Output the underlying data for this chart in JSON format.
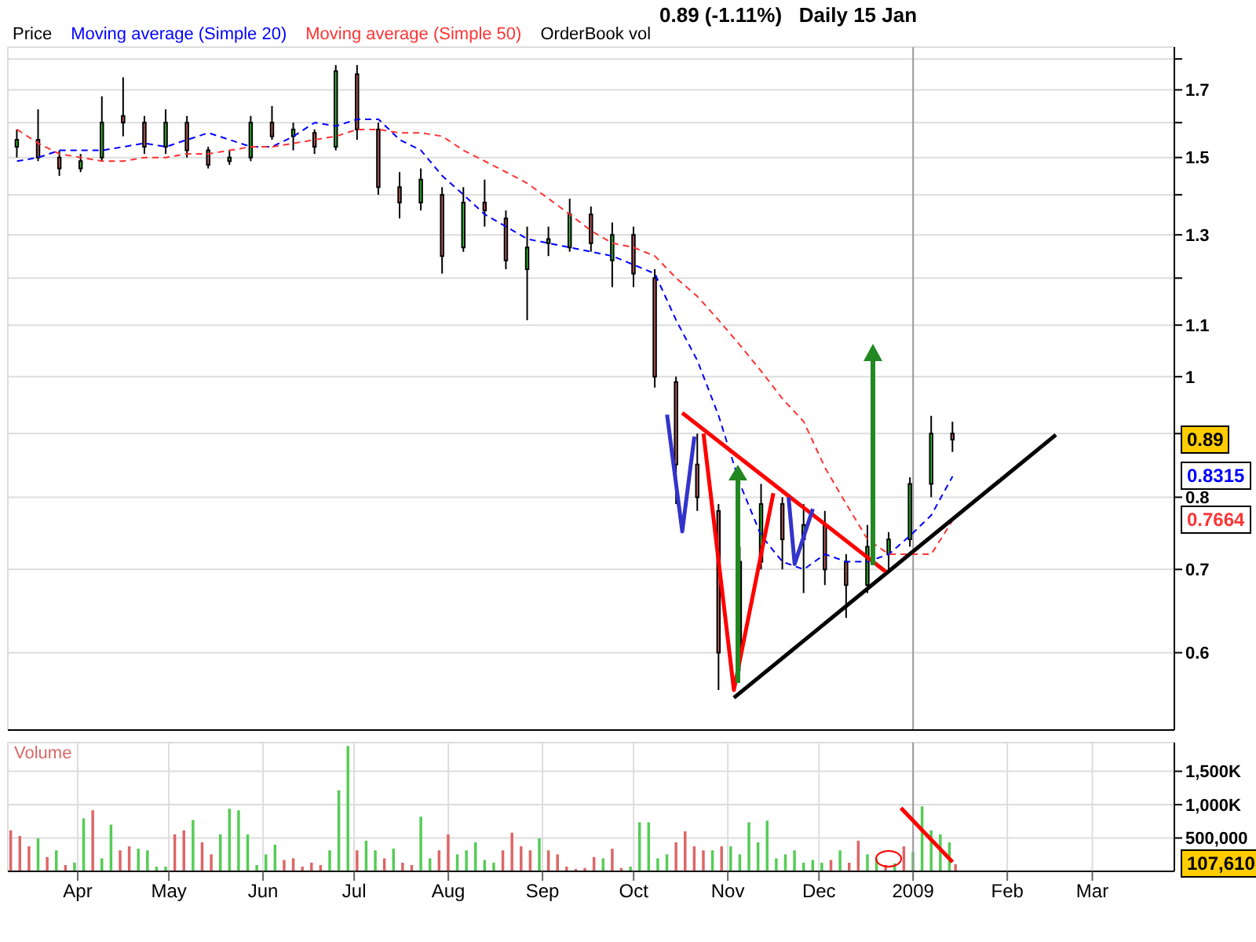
{
  "chart_data": [
    {
      "type": "candlestick",
      "title": "0.89 (-1.11%)   Daily 15 Jan",
      "legend": "top left",
      "grid": true,
      "log": "y",
      "tick_labels": "y",
      "x": [
        "2008-03-12",
        "2008-03-19",
        "2008-03-26",
        "2008-04-02",
        "2008-04-09",
        "2008-04-16",
        "2008-04-23",
        "2008-04-30",
        "2008-05-07",
        "2008-05-14",
        "2008-05-21",
        "2008-05-28",
        "2008-06-04",
        "2008-06-11",
        "2008-06-18",
        "2008-06-25",
        "2008-07-02",
        "2008-07-09",
        "2008-07-16",
        "2008-07-23",
        "2008-07-30",
        "2008-08-06",
        "2008-08-13",
        "2008-08-20",
        "2008-08-27",
        "2008-09-03",
        "2008-09-10",
        "2008-09-17",
        "2008-09-24",
        "2008-10-01",
        "2008-10-08",
        "2008-10-15",
        "2008-10-22",
        "2008-10-29",
        "2008-11-05",
        "2008-11-12",
        "2008-11-19",
        "2008-11-26",
        "2008-12-03",
        "2008-12-10",
        "2008-12-17",
        "2008-12-24",
        "2008-12-31",
        "2009-01-07",
        "2009-01-14"
      ],
      "series": [
        {
          "name": "Price",
          "ohlc": [
            [
              1.53,
              1.58,
              1.5,
              1.55
            ],
            [
              1.55,
              1.64,
              1.49,
              1.5
            ],
            [
              1.5,
              1.52,
              1.45,
              1.47
            ],
            [
              1.47,
              1.51,
              1.46,
              1.49
            ],
            [
              1.5,
              1.68,
              1.49,
              1.6
            ],
            [
              1.62,
              1.74,
              1.56,
              1.6
            ],
            [
              1.6,
              1.62,
              1.51,
              1.53
            ],
            [
              1.53,
              1.64,
              1.51,
              1.6
            ],
            [
              1.6,
              1.62,
              1.5,
              1.52
            ],
            [
              1.52,
              1.53,
              1.47,
              1.48
            ],
            [
              1.49,
              1.52,
              1.48,
              1.5
            ],
            [
              1.5,
              1.62,
              1.49,
              1.6
            ],
            [
              1.6,
              1.65,
              1.55,
              1.56
            ],
            [
              1.56,
              1.6,
              1.52,
              1.58
            ],
            [
              1.57,
              1.58,
              1.51,
              1.53
            ],
            [
              1.53,
              1.78,
              1.52,
              1.76
            ],
            [
              1.75,
              1.78,
              1.55,
              1.58
            ],
            [
              1.58,
              1.6,
              1.4,
              1.42
            ],
            [
              1.42,
              1.46,
              1.34,
              1.38
            ],
            [
              1.38,
              1.47,
              1.36,
              1.44
            ],
            [
              1.4,
              1.42,
              1.21,
              1.25
            ],
            [
              1.27,
              1.42,
              1.26,
              1.38
            ],
            [
              1.38,
              1.44,
              1.32,
              1.36
            ],
            [
              1.34,
              1.36,
              1.22,
              1.24
            ],
            [
              1.22,
              1.32,
              1.11,
              1.27
            ],
            [
              1.28,
              1.32,
              1.25,
              1.29
            ],
            [
              1.27,
              1.39,
              1.26,
              1.35
            ],
            [
              1.35,
              1.37,
              1.26,
              1.28
            ],
            [
              1.24,
              1.33,
              1.18,
              1.3
            ],
            [
              1.3,
              1.32,
              1.18,
              1.21
            ],
            [
              1.2,
              1.22,
              0.98,
              1.0
            ],
            [
              0.99,
              1.0,
              0.79,
              0.85
            ],
            [
              0.85,
              0.9,
              0.78,
              0.8
            ],
            [
              0.78,
              0.79,
              0.56,
              0.6
            ],
            [
              0.6,
              0.73,
              0.58,
              0.71
            ],
            [
              0.71,
              0.82,
              0.7,
              0.79
            ],
            [
              0.79,
              0.8,
              0.7,
              0.74
            ],
            [
              0.74,
              0.79,
              0.67,
              0.76
            ],
            [
              0.76,
              0.78,
              0.68,
              0.7
            ],
            [
              0.71,
              0.72,
              0.64,
              0.68
            ],
            [
              0.68,
              0.76,
              0.67,
              0.73
            ],
            [
              0.72,
              0.75,
              0.7,
              0.74
            ],
            [
              0.74,
              0.83,
              0.73,
              0.82
            ],
            [
              0.82,
              0.93,
              0.8,
              0.9
            ],
            [
              0.9,
              0.92,
              0.87,
              0.89
            ]
          ],
          "colors": [
            "#33cc33",
            "#cc6666",
            "#cc6666",
            "#33cc33",
            "#33cc33",
            "#cc6666",
            "#cc6666",
            "#33cc33",
            "#cc6666",
            "#cc6666",
            "#33cc33",
            "#33cc33",
            "#cc6666",
            "#33cc33",
            "#cc6666",
            "#33cc33",
            "#cc6666",
            "#cc6666",
            "#cc6666",
            "#33cc33",
            "#cc6666",
            "#33cc33",
            "#cc6666",
            "#cc6666",
            "#33cc33",
            "#33cc33",
            "#33cc33",
            "#cc6666",
            "#33cc33",
            "#cc6666",
            "#cc6666",
            "#cc6666",
            "#cc6666",
            "#cc6666",
            "#33cc33",
            "#33cc33",
            "#cc6666",
            "#33cc33",
            "#cc6666",
            "#cc6666",
            "#33cc33",
            "#33cc33",
            "#33cc33",
            "#33cc33",
            "#cc6666"
          ]
        },
        {
          "type": "line",
          "name": "Moving average (Simple 20)",
          "color": "#0000ff",
          "line_style": "dashed",
          "values": [
            1.49,
            1.5,
            1.52,
            1.52,
            1.52,
            1.53,
            1.54,
            1.53,
            1.55,
            1.57,
            1.55,
            1.53,
            1.53,
            1.56,
            1.6,
            1.59,
            1.61,
            1.61,
            1.55,
            1.52,
            1.45,
            1.4,
            1.35,
            1.32,
            1.29,
            1.28,
            1.27,
            1.26,
            1.25,
            1.23,
            1.21,
            1.11,
            1.03,
            0.93,
            0.82,
            0.745,
            0.71,
            0.7,
            0.72,
            0.71,
            0.71,
            0.72,
            0.745,
            0.774,
            0.8315
          ]
        },
        {
          "type": "line",
          "name": "Moving average (Simple 50)",
          "color": "#ff3333",
          "line_style": "dashed",
          "values": [
            1.58,
            1.54,
            1.51,
            1.5,
            1.49,
            1.49,
            1.5,
            1.5,
            1.51,
            1.51,
            1.52,
            1.53,
            1.53,
            1.54,
            1.55,
            1.56,
            1.58,
            1.58,
            1.57,
            1.57,
            1.56,
            1.52,
            1.49,
            1.46,
            1.43,
            1.39,
            1.35,
            1.31,
            1.28,
            1.27,
            1.25,
            1.2,
            1.16,
            1.11,
            1.06,
            1.01,
            0.96,
            0.92,
            0.845,
            0.79,
            0.74,
            0.72,
            0.72,
            0.72,
            0.7664
          ]
        },
        {
          "type": "line",
          "color": "#000000",
          "line_style": "solid",
          "x": [
            "2008-11-03",
            "2009-02-17"
          ],
          "values": [
            0.552,
            0.898
          ]
        },
        {
          "type": "line",
          "color": "#ff0000",
          "line_style": "solid",
          "x": [
            "2008-10-17",
            "2008-12-23"
          ],
          "values": [
            0.935,
            0.697
          ]
        },
        {
          "type": "line",
          "color": "#ff0000",
          "line_style": "solid",
          "x": [
            "2008-10-24",
            "2008-11-03",
            "2008-11-16"
          ],
          "values": [
            0.9,
            0.56,
            0.806
          ]
        },
        {
          "type": "line",
          "color": "#3333cc",
          "line_style": "solid",
          "x": [
            "2008-10-12",
            "2008-10-17",
            "2008-10-21"
          ],
          "values": [
            0.932,
            0.751,
            0.895
          ]
        },
        {
          "type": "line",
          "color": "#3333cc",
          "line_style": "solid",
          "x": [
            "2008-11-21",
            "2008-11-23",
            "2008-11-29"
          ],
          "values": [
            0.8,
            0.707,
            0.783
          ]
        }
      ],
      "xlim": [
        "2008-03-09",
        "2009-03-28"
      ],
      "xticks": [
        {
          "value": "2008-04-01",
          "label": null
        },
        {
          "value": "2008-05-01",
          "label": null
        },
        {
          "value": "2008-06-01",
          "label": null
        },
        {
          "value": "2008-07-01",
          "label": null
        },
        {
          "value": "2008-08-01",
          "label": null
        },
        {
          "value": "2008-09-01",
          "label": null
        },
        {
          "value": "2008-10-01",
          "label": null
        },
        {
          "value": "2008-11-01",
          "label": null
        },
        {
          "value": "2008-12-01",
          "label": null
        },
        {
          "value": "2009-01-01",
          "label": null
        },
        {
          "value": "2009-02-01",
          "label": null
        },
        {
          "value": "2009-03-01",
          "label": null
        }
      ],
      "ylim": [
        0.52,
        1.84
      ],
      "yticks": [
        0.6,
        0.7,
        0.8,
        {
          "value": 0.9,
          "label": null
        },
        1,
        1.1,
        {
          "value": 1.2,
          "label": null
        },
        1.3,
        {
          "value": 1.4,
          "label": null
        },
        1.5,
        {
          "value": 1.6,
          "label": null
        },
        1.7,
        {
          "value": 1.8,
          "label": null
        }
      ],
      "ref_lines": [
        {
          "axis": "x",
          "value": "2009-01-01",
          "color": "#999999"
        }
      ],
      "annotations": [
        "0.89",
        "0.8315",
        "0.7664",
        "OrderBook vol"
      ]
    },
    {
      "type": "bar",
      "title": "Volume",
      "grid": true,
      "x": [
        "2008-03-10",
        "2008-03-13",
        "2008-03-16",
        "2008-03-19",
        "2008-03-22",
        "2008-03-25",
        "2008-03-28",
        "2008-03-31",
        "2008-04-03",
        "2008-04-06",
        "2008-04-09",
        "2008-04-12",
        "2008-04-15",
        "2008-04-18",
        "2008-04-21",
        "2008-04-24",
        "2008-04-27",
        "2008-04-30",
        "2008-05-03",
        "2008-05-06",
        "2008-05-09",
        "2008-05-12",
        "2008-05-15",
        "2008-05-18",
        "2008-05-21",
        "2008-05-24",
        "2008-05-27",
        "2008-05-30",
        "2008-06-02",
        "2008-06-05",
        "2008-06-08",
        "2008-06-11",
        "2008-06-14",
        "2008-06-17",
        "2008-06-20",
        "2008-06-23",
        "2008-06-26",
        "2008-06-29",
        "2008-07-02",
        "2008-07-05",
        "2008-07-08",
        "2008-07-11",
        "2008-07-14",
        "2008-07-17",
        "2008-07-20",
        "2008-07-23",
        "2008-07-26",
        "2008-07-29",
        "2008-08-01",
        "2008-08-04",
        "2008-08-07",
        "2008-08-10",
        "2008-08-13",
        "2008-08-16",
        "2008-08-19",
        "2008-08-22",
        "2008-08-25",
        "2008-08-28",
        "2008-08-31",
        "2008-09-03",
        "2008-09-06",
        "2008-09-09",
        "2008-09-12",
        "2008-09-15",
        "2008-09-18",
        "2008-09-21",
        "2008-09-24",
        "2008-09-27",
        "2008-09-30",
        "2008-10-03",
        "2008-10-06",
        "2008-10-09",
        "2008-10-12",
        "2008-10-15",
        "2008-10-18",
        "2008-10-21",
        "2008-10-24",
        "2008-10-27",
        "2008-10-30",
        "2008-11-02",
        "2008-11-05",
        "2008-11-08",
        "2008-11-11",
        "2008-11-14",
        "2008-11-17",
        "2008-11-20",
        "2008-11-23",
        "2008-11-26",
        "2008-11-29",
        "2008-12-02",
        "2008-12-05",
        "2008-12-08",
        "2008-12-11",
        "2008-12-14",
        "2008-12-17",
        "2008-12-20",
        "2008-12-23",
        "2008-12-26",
        "2008-12-29",
        "2009-01-01",
        "2009-01-04",
        "2009-01-07",
        "2009-01-10",
        "2009-01-13",
        "2009-01-15"
      ],
      "series": [
        {
          "values": [
            615000,
            530000,
            375000,
            495000,
            215000,
            315000,
            95000,
            130000,
            795000,
            915000,
            195000,
            700000,
            315000,
            375000,
            340000,
            315000,
            70000,
            70000,
            555000,
            615000,
            770000,
            435000,
            255000,
            555000,
            940000,
            915000,
            555000,
            95000,
            255000,
            400000,
            170000,
            195000,
            70000,
            130000,
            95000,
            315000,
            1215000,
            1880000,
            315000,
            460000,
            315000,
            195000,
            340000,
            130000,
            95000,
            820000,
            195000,
            315000,
            555000,
            255000,
            315000,
            435000,
            170000,
            130000,
            315000,
            580000,
            375000,
            315000,
            495000,
            315000,
            255000,
            70000,
            35000,
            50000,
            215000,
            195000,
            340000,
            50000,
            70000,
            735000,
            735000,
            195000,
            255000,
            435000,
            600000,
            375000,
            315000,
            315000,
            375000,
            375000,
            255000,
            735000,
            435000,
            760000,
            195000,
            255000,
            315000,
            130000,
            170000,
            130000,
            170000,
            315000,
            130000,
            460000,
            255000,
            195000,
            95000,
            120000,
            375000,
            290000,
            975000,
            615000,
            555000,
            435000,
            107610
          ],
          "colors": [
            "#dd6666",
            "#dd6666",
            "#dd6666",
            "#55cc55",
            "#dd6666",
            "#55cc55",
            "#dd6666",
            "#55cc55",
            "#55cc55",
            "#dd6666",
            "#55cc55",
            "#55cc55",
            "#dd6666",
            "#dd6666",
            "#55cc55",
            "#55cc55",
            "#55cc55",
            "#55cc55",
            "#dd6666",
            "#dd6666",
            "#55cc55",
            "#dd6666",
            "#dd6666",
            "#55cc55",
            "#55cc55",
            "#55cc55",
            "#55cc55",
            "#55cc55",
            "#55cc55",
            "#55cc55",
            "#dd6666",
            "#dd6666",
            "#dd6666",
            "#dd6666",
            "#dd6666",
            "#55cc55",
            "#55cc55",
            "#55cc55",
            "#dd6666",
            "#55cc55",
            "#55cc55",
            "#dd6666",
            "#55cc55",
            "#dd6666",
            "#dd6666",
            "#55cc55",
            "#55cc55",
            "#dd6666",
            "#dd6666",
            "#55cc55",
            "#55cc55",
            "#55cc55",
            "#55cc55",
            "#55cc55",
            "#dd6666",
            "#dd6666",
            "#dd6666",
            "#dd6666",
            "#55cc55",
            "#dd6666",
            "#dd6666",
            "#dd6666",
            "#dd6666",
            "#dd6666",
            "#dd6666",
            "#55cc55",
            "#dd6666",
            "#dd6666",
            "#55cc55",
            "#55cc55",
            "#55cc55",
            "#55cc55",
            "#55cc55",
            "#dd6666",
            "#dd6666",
            "#dd6666",
            "#dd6666",
            "#55cc55",
            "#dd6666",
            "#55cc55",
            "#55cc55",
            "#55cc55",
            "#55cc55",
            "#55cc55",
            "#55cc55",
            "#55cc55",
            "#55cc55",
            "#55cc55",
            "#55cc55",
            "#55cc55",
            "#dd6666",
            "#55cc55",
            "#dd6666",
            "#dd6666",
            "#55cc55",
            "#55cc55",
            "#dd6666",
            "#55cc55",
            "#dd6666",
            "#55cc55",
            "#55cc55",
            "#55cc55",
            "#55cc55",
            "#55cc55",
            "#dd6666"
          ]
        },
        {
          "type": "line",
          "color": "#ff0000",
          "line_style": "solid",
          "x": [
            "2008-12-28",
            "2009-01-14"
          ],
          "values": [
            950000,
            140000
          ]
        }
      ],
      "xlim": [
        "2008-03-09",
        "2009-03-28"
      ],
      "xticks": [
        {
          "value": "2008-04-01",
          "label": "Apr"
        },
        {
          "value": "2008-05-01",
          "label": "May"
        },
        {
          "value": "2008-06-01",
          "label": "Jun"
        },
        {
          "value": "2008-07-01",
          "label": "Jul"
        },
        {
          "value": "2008-08-01",
          "label": "Aug"
        },
        {
          "value": "2008-09-01",
          "label": "Sep"
        },
        {
          "value": "2008-10-01",
          "label": "Oct"
        },
        {
          "value": "2008-11-01",
          "label": "Nov"
        },
        {
          "value": "2008-12-01",
          "label": "Dec"
        },
        {
          "value": "2009-01-01",
          "label": "2009"
        },
        {
          "value": "2009-02-01",
          "label": "Feb"
        },
        {
          "value": "2009-03-01",
          "label": "Mar"
        }
      ],
      "ylim": [
        0,
        1930000
      ],
      "yticks": [
        {
          "value": 500000,
          "label": "500,000"
        },
        {
          "value": 1000000,
          "label": "1,000K"
        },
        {
          "value": 1500000,
          "label": "1,500K"
        }
      ],
      "ref_lines": [
        {
          "axis": "x",
          "value": "2009-01-01",
          "color": "#999999"
        }
      ],
      "annotations": [
        "107,610"
      ]
    }
  ]
}
